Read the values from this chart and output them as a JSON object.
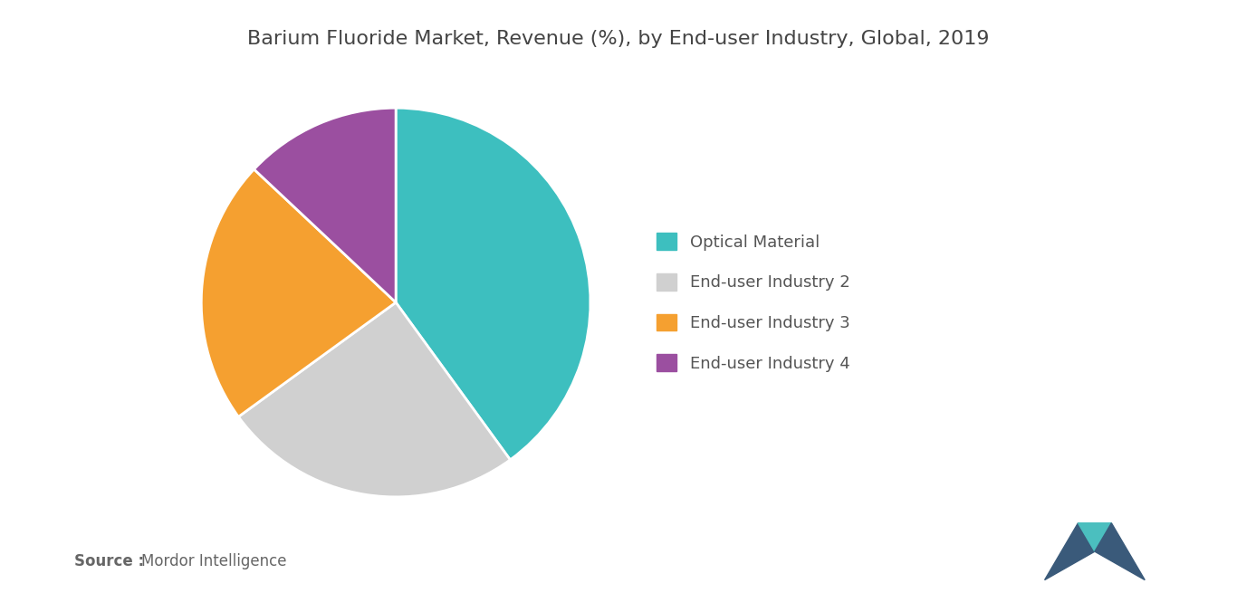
{
  "title": "Barium Fluoride Market, Revenue (%), by End-user Industry, Global, 2019",
  "labels": [
    "Optical Material",
    "End-user Industry 2",
    "End-user Industry 3",
    "End-user Industry 4"
  ],
  "values": [
    40,
    25,
    22,
    13
  ],
  "colors": [
    "#3dbfbf",
    "#d0d0d0",
    "#f5a030",
    "#9b4fa0"
  ],
  "startangle": 90,
  "source_bold": "Source :",
  "source_text": "Mordor Intelligence",
  "background_color": "#ffffff",
  "title_fontsize": 16,
  "legend_fontsize": 13,
  "source_fontsize": 12
}
